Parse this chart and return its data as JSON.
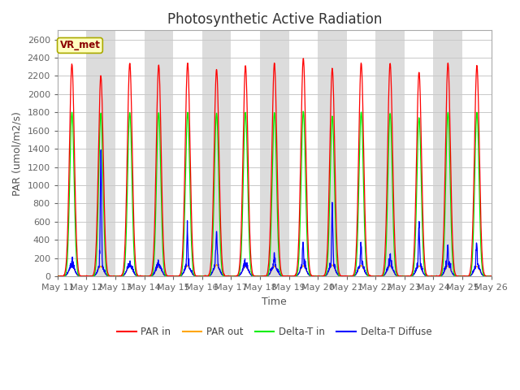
{
  "title": "Photosynthetic Active Radiation",
  "ylabel": "PAR (umol/m2/s)",
  "xlabel": "Time",
  "annotation": "VR_met",
  "ylim": [
    0,
    2700
  ],
  "yticks": [
    0,
    200,
    400,
    600,
    800,
    1000,
    1200,
    1400,
    1600,
    1800,
    2000,
    2200,
    2400,
    2600
  ],
  "num_days": 15,
  "xtick_labels": [
    "May 11",
    "May 12",
    "May 13",
    "May 14",
    "May 15",
    "May 16",
    "May 17",
    "May 18",
    "May 19",
    "May 20",
    "May 21",
    "May 22",
    "May 23",
    "May 24",
    "May 25",
    "May 26"
  ],
  "colors": {
    "PAR_in": "#FF0000",
    "PAR_out": "#FFA500",
    "Delta_T_in": "#00EE00",
    "Delta_T_Diffuse": "#0000FF"
  },
  "legend_labels": [
    "PAR in",
    "PAR out",
    "Delta-T in",
    "Delta-T Diffuse"
  ],
  "band_colors": [
    "#FFFFFF",
    "#DCDCDC"
  ],
  "fig_background": "#FFFFFF",
  "title_fontsize": 12,
  "label_fontsize": 9,
  "tick_fontsize": 8,
  "grid_color": "#C8C8C8"
}
